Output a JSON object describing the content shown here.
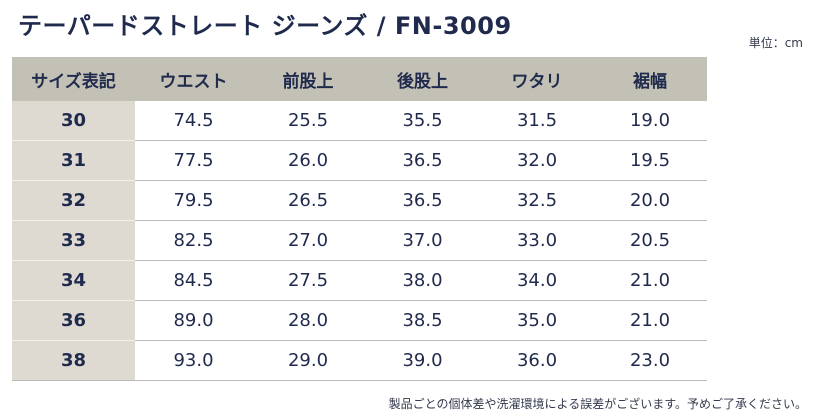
{
  "header": {
    "title": "テーパードストレート ジーンズ / FN-3009",
    "unit_label": "単位：cm"
  },
  "table": {
    "columns": [
      "サイズ表記",
      "ウエスト",
      "前股上",
      "後股上",
      "ワタリ",
      "裾幅"
    ],
    "rows": [
      [
        "30",
        "74.5",
        "25.5",
        "35.5",
        "31.5",
        "19.0"
      ],
      [
        "31",
        "77.5",
        "26.0",
        "36.5",
        "32.0",
        "19.5"
      ],
      [
        "32",
        "79.5",
        "26.5",
        "36.5",
        "32.5",
        "20.0"
      ],
      [
        "33",
        "82.5",
        "27.0",
        "37.0",
        "33.0",
        "20.5"
      ],
      [
        "34",
        "84.5",
        "27.5",
        "38.0",
        "34.0",
        "21.0"
      ],
      [
        "36",
        "89.0",
        "28.0",
        "38.5",
        "35.0",
        "21.0"
      ],
      [
        "38",
        "93.0",
        "29.0",
        "39.0",
        "36.0",
        "23.0"
      ]
    ]
  },
  "footer": {
    "note": "製品ごとの個体差や洗濯環境による誤差がございます。予めご了承ください。"
  },
  "colors": {
    "header_bg": "#c3c0b5",
    "size_col_bg": "#dedad2",
    "text": "#1f2a4d"
  }
}
